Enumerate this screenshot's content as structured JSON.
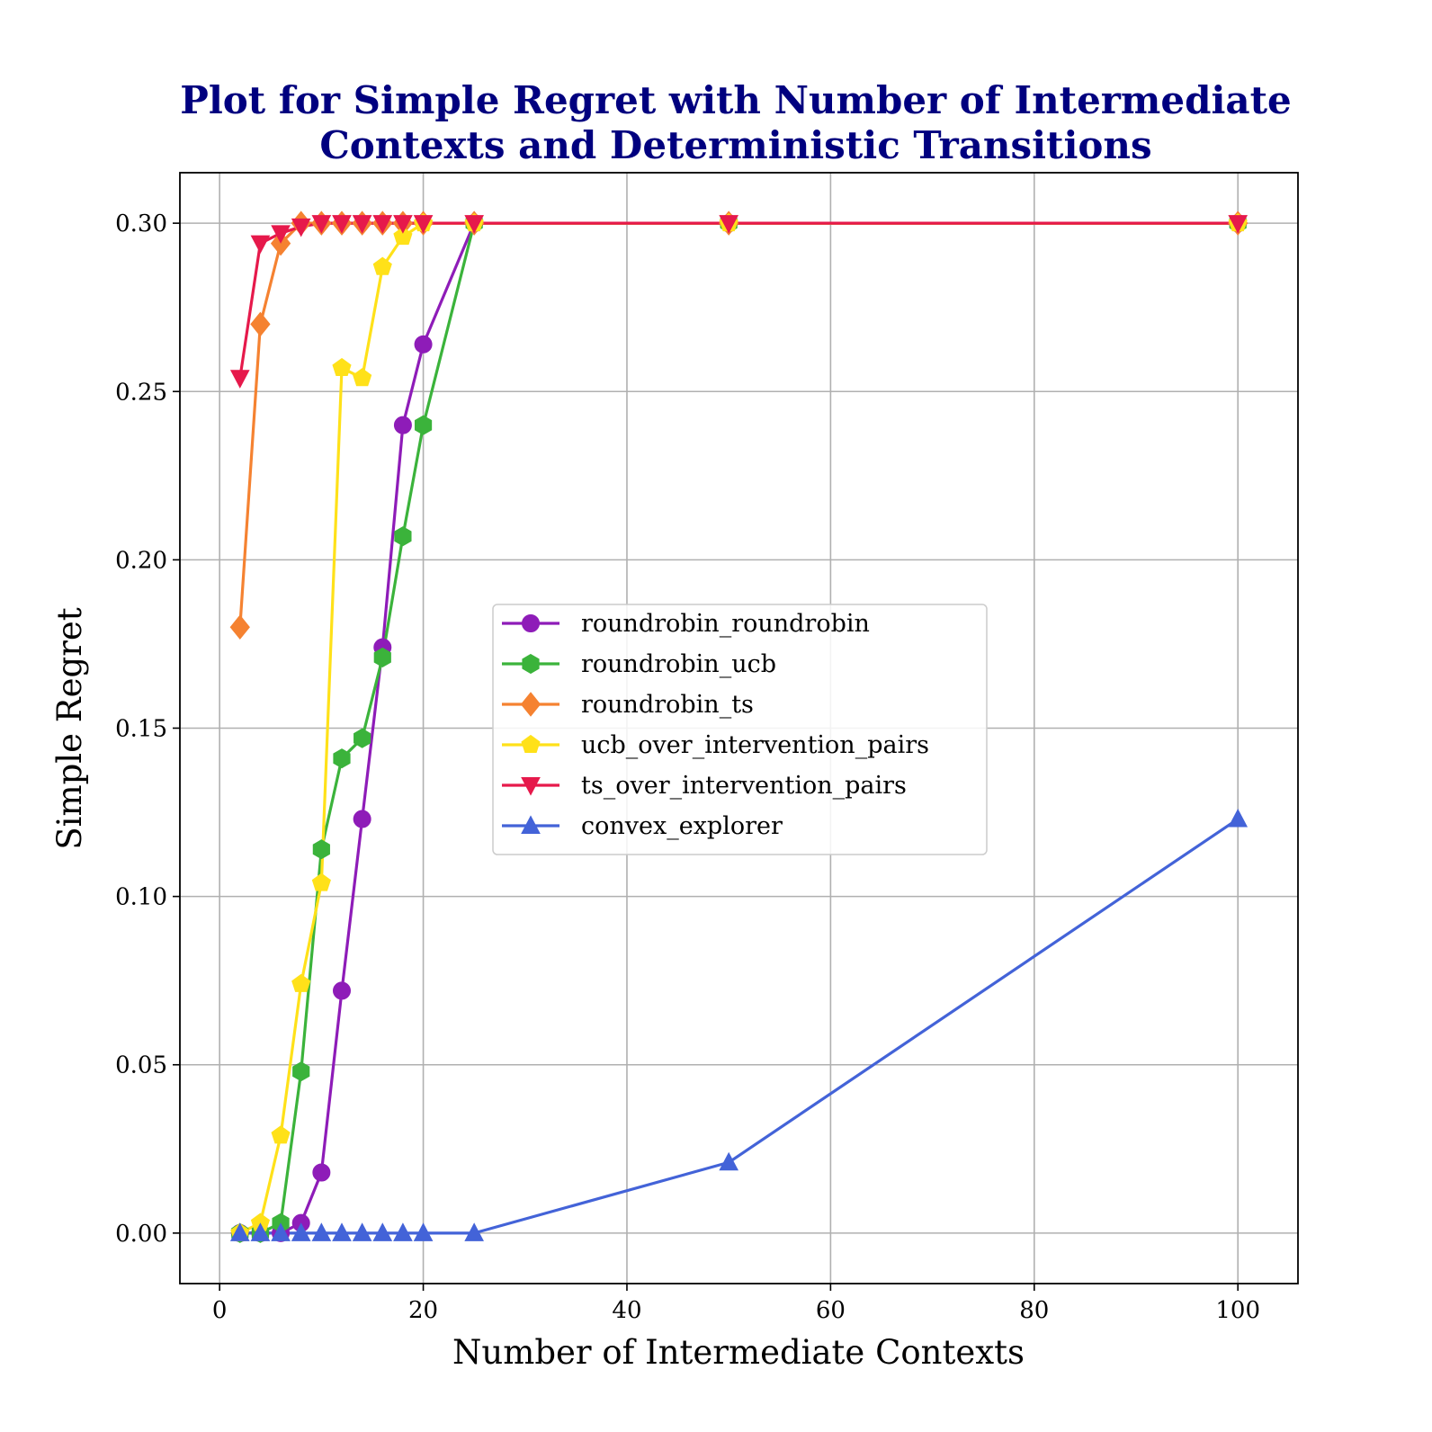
{
  "chart_data": {
    "type": "line",
    "title_lines": [
      "Plot for Simple Regret with Number of Intermediate",
      "Contexts and Deterministic Transitions"
    ],
    "xlabel": "Number of Intermediate Contexts",
    "ylabel": "Simple Regret",
    "xlim": [
      -3.9,
      105.9
    ],
    "ylim": [
      -0.015,
      0.315
    ],
    "xticks": [
      0,
      20,
      40,
      60,
      80,
      100
    ],
    "xtick_labels": [
      "0",
      "20",
      "40",
      "60",
      "80",
      "100"
    ],
    "yticks": [
      0.0,
      0.05,
      0.1,
      0.15,
      0.2,
      0.25,
      0.3
    ],
    "ytick_labels": [
      "0.00",
      "0.05",
      "0.10",
      "0.15",
      "0.20",
      "0.25",
      "0.30"
    ],
    "grid": true,
    "legend_position": "center-right",
    "series": [
      {
        "name": "roundrobin_roundrobin",
        "color": "#8e1cb8",
        "marker": "circle",
        "x": [
          2,
          4,
          6,
          8,
          10,
          12,
          14,
          16,
          18,
          20,
          25,
          50,
          100
        ],
        "y": [
          0.0,
          0.0,
          0.0,
          0.003,
          0.018,
          0.072,
          0.123,
          0.174,
          0.24,
          0.264,
          0.3,
          0.3,
          0.3
        ]
      },
      {
        "name": "roundrobin_ucb",
        "color": "#3bb33b",
        "marker": "hexagon",
        "x": [
          2,
          4,
          6,
          8,
          10,
          12,
          14,
          16,
          18,
          20,
          25,
          50,
          100
        ],
        "y": [
          0.0,
          0.0,
          0.003,
          0.048,
          0.114,
          0.141,
          0.147,
          0.171,
          0.207,
          0.24,
          0.3,
          0.3,
          0.3
        ]
      },
      {
        "name": "roundrobin_ts",
        "color": "#f58231",
        "marker": "diamond",
        "x": [
          2,
          4,
          6,
          8,
          10,
          12,
          14,
          16,
          18,
          20,
          25,
          50,
          100
        ],
        "y": [
          0.18,
          0.27,
          0.294,
          0.3,
          0.3,
          0.3,
          0.3,
          0.3,
          0.3,
          0.3,
          0.3,
          0.3,
          0.3
        ]
      },
      {
        "name": "ucb_over_intervention_pairs",
        "color": "#ffe119",
        "marker": "pentagon",
        "x": [
          2,
          4,
          6,
          8,
          10,
          12,
          14,
          16,
          18,
          20,
          25,
          50,
          100
        ],
        "y": [
          0.0,
          0.003,
          0.029,
          0.074,
          0.104,
          0.257,
          0.254,
          0.287,
          0.296,
          0.3,
          0.3,
          0.3,
          0.3
        ]
      },
      {
        "name": "ts_over_intervention_pairs",
        "color": "#e6194b",
        "marker": "triangle-down",
        "x": [
          2,
          4,
          6,
          8,
          10,
          12,
          14,
          16,
          18,
          20,
          25,
          50,
          100
        ],
        "y": [
          0.254,
          0.294,
          0.297,
          0.299,
          0.3,
          0.3,
          0.3,
          0.3,
          0.3,
          0.3,
          0.3,
          0.3,
          0.3
        ]
      },
      {
        "name": "convex_explorer",
        "color": "#4363d8",
        "marker": "triangle-up",
        "x": [
          2,
          4,
          6,
          8,
          10,
          12,
          14,
          16,
          18,
          20,
          25,
          50,
          100
        ],
        "y": [
          0.0,
          0.0,
          0.0,
          0.0,
          0.0,
          0.0,
          0.0,
          0.0,
          0.0,
          0.0,
          0.0,
          0.021,
          0.123
        ]
      }
    ]
  }
}
